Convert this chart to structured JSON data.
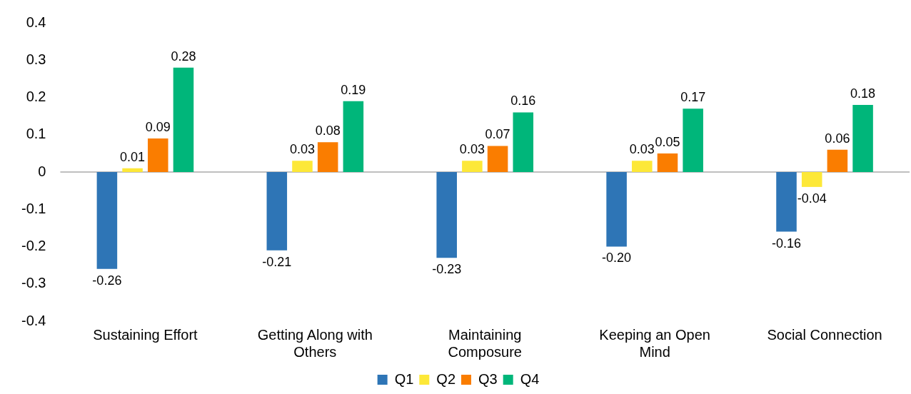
{
  "chart_data": {
    "type": "bar",
    "categories": [
      "Sustaining Effort",
      "Getting Along with Others",
      "Maintaining Composure",
      "Keeping an Open Mind",
      "Social Connection"
    ],
    "series": [
      {
        "name": "Q1",
        "color": "#2e75b6",
        "values": [
          -0.26,
          -0.21,
          -0.23,
          -0.2,
          -0.16
        ],
        "value_labels": [
          "-0.26",
          "-0.21",
          "-0.23",
          "-0.20",
          "-0.16"
        ]
      },
      {
        "name": "Q2",
        "color": "#fde838",
        "values": [
          0.01,
          0.03,
          0.03,
          0.03,
          -0.04
        ],
        "value_labels": [
          "0.01",
          "0.03",
          "0.03",
          "0.03",
          "-0.04"
        ]
      },
      {
        "name": "Q3",
        "color": "#fa7d00",
        "values": [
          0.09,
          0.08,
          0.07,
          0.05,
          0.06
        ],
        "value_labels": [
          "0.09",
          "0.08",
          "0.07",
          "0.05",
          "0.06"
        ]
      },
      {
        "name": "Q4",
        "color": "#00b67a",
        "values": [
          0.28,
          0.19,
          0.16,
          0.17,
          0.18
        ],
        "value_labels": [
          "0.28",
          "0.19",
          "0.16",
          "0.17",
          "0.18"
        ]
      }
    ],
    "ylim": [
      -0.4,
      0.4
    ],
    "yticks": [
      -0.4,
      -0.3,
      -0.2,
      -0.1,
      0,
      0.1,
      0.2,
      0.3,
      0.4
    ],
    "grid": false,
    "ref_lines": [
      {
        "axis": "y",
        "value": 0,
        "color": "#7f7f7f"
      }
    ],
    "legend": "bottom"
  }
}
